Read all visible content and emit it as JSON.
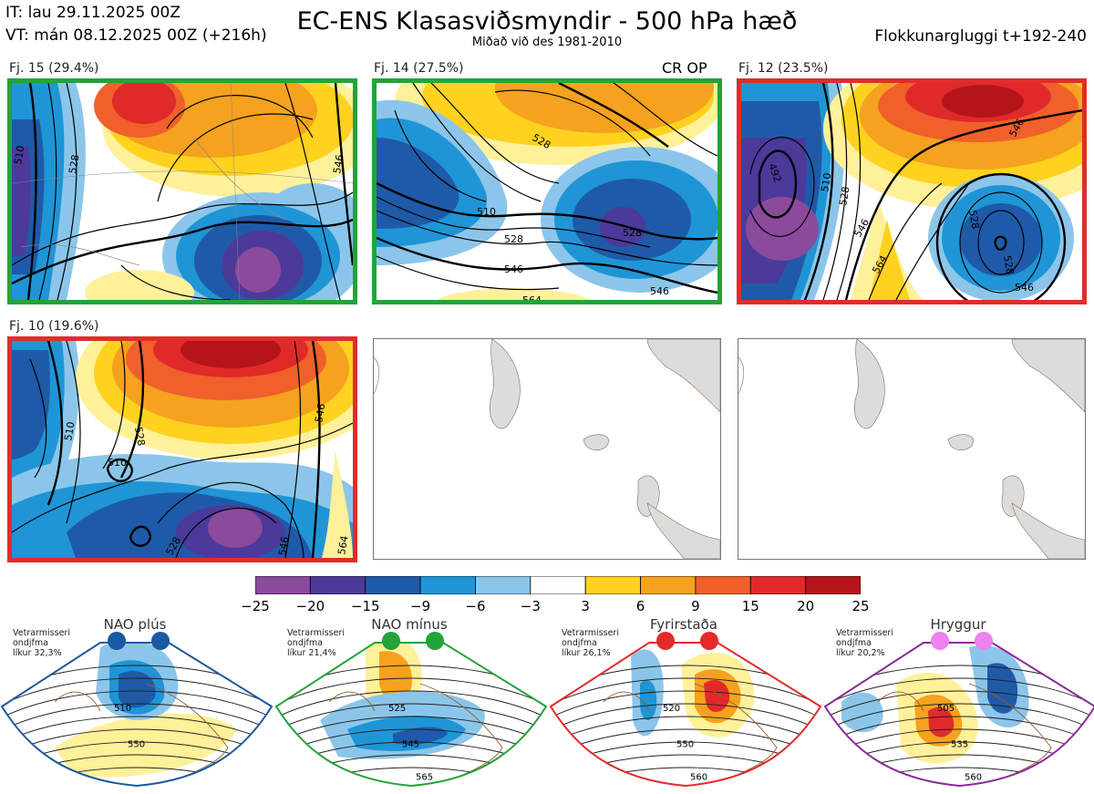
{
  "header": {
    "it": "IT: lau 29.11.2025 00Z",
    "vt": "VT: mán 08.12.2025 00Z  (+216h)",
    "title": "EC-ENS Klasasviðsmyndir - 500 hPa hæð",
    "subtitle": "Miðað við des 1981-2010",
    "window": "Flokkunargluggi t+192-240"
  },
  "panels": [
    {
      "label": "Fj. 15 (29.4%)",
      "border": "#23a33a",
      "contours": [
        "510",
        "528",
        "546"
      ]
    },
    {
      "label": "Fj. 14 (27.5%)",
      "border": "#23a33a",
      "tag": "CR OP",
      "contours": [
        "510",
        "528",
        "528",
        "546",
        "546",
        "564",
        "528"
      ]
    },
    {
      "label": "Fj. 12 (23.5%)",
      "border": "#e22b2b",
      "contours": [
        "492",
        "510",
        "528",
        "546",
        "546",
        "564",
        "528",
        "528",
        "546"
      ]
    },
    {
      "label": "Fj. 10 (19.6%)",
      "border": "#e22b2b",
      "contours": [
        "510",
        "528",
        "510",
        "546",
        "564",
        "528",
        "546"
      ]
    }
  ],
  "colorbar": {
    "ticks": [
      "−25",
      "−20",
      "−15",
      "−9",
      "−6",
      "−3",
      "3",
      "6",
      "9",
      "15",
      "20",
      "25"
    ],
    "colors": [
      "#8b4a9c",
      "#4b3a9a",
      "#1f5aa8",
      "#1f95d6",
      "#8bc6ea",
      "#ffffff",
      "#fff09a",
      "#ffd21f",
      "#f5a21e",
      "#f0602a",
      "#e02a2a",
      "#b5151a"
    ]
  },
  "regimes": [
    {
      "name": "NAO plús",
      "note": [
        "Vetrarmisseri",
        "ondjfma",
        "líkur 32,3%"
      ],
      "color": "#1a5aa0",
      "contours": [
        "510",
        "550"
      ]
    },
    {
      "name": "NAO mínus",
      "note": [
        "Vetrarmisseri",
        "ondjfma",
        "líkur 21,4%"
      ],
      "color": "#23a33a",
      "contours": [
        "525",
        "545",
        "565"
      ]
    },
    {
      "name": "Fyrirstaða",
      "note": [
        "Vetrarmisseri",
        "ondjfma",
        "líkur 26,1%"
      ],
      "color": "#e22b2b",
      "contours": [
        "520",
        "550",
        "560"
      ]
    },
    {
      "name": "Hryggur",
      "note": [
        "Vetrarmisseri",
        "ondjfma",
        "líkur 20,2%"
      ],
      "color": "#8a2a9a",
      "contours": [
        "505",
        "535",
        "560"
      ]
    }
  ]
}
